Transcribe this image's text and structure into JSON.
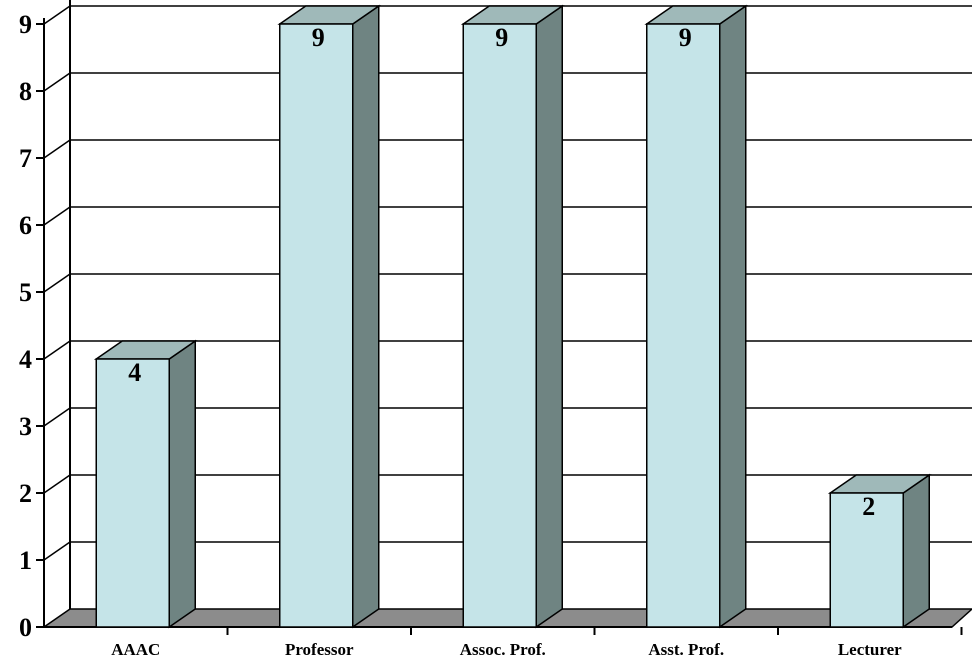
{
  "chart_data": {
    "type": "bar",
    "style": "3d",
    "categories": [
      "AAAC",
      "Professor",
      "Assoc. Prof.",
      "Asst. Prof.",
      "Lecturer"
    ],
    "values": [
      4,
      9,
      9,
      9,
      2
    ],
    "data_labels": [
      "4",
      "9",
      "9",
      "9",
      "2"
    ],
    "yticks": [
      "0",
      "1",
      "2",
      "3",
      "4",
      "5",
      "6",
      "7",
      "8",
      "9"
    ],
    "ylim": [
      0,
      9
    ],
    "grid": true,
    "legend": "none",
    "colors": {
      "bar_front": "#c5e4e8",
      "bar_side": "#6f8482",
      "bar_top": "#9fb9b9",
      "floor": "#8c8c8c"
    }
  }
}
